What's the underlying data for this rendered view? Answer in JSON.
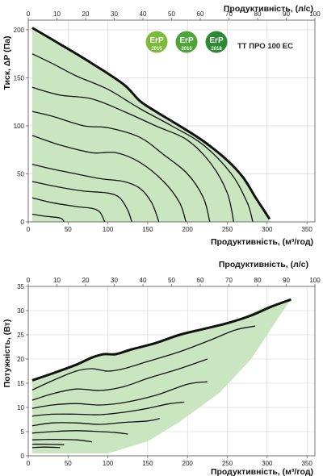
{
  "model": "ТТ ПРО 100 ЕС",
  "badges": [
    {
      "label": "ErP",
      "year": "2015",
      "color": "#7cbb3a"
    },
    {
      "label": "ErP",
      "year": "2016",
      "color": "#4ea63a"
    },
    {
      "label": "ErP",
      "year": "2018",
      "color": "#2e8a33"
    }
  ],
  "colors": {
    "fill": "#c9e6c0",
    "curve": "#111111",
    "grid": "#d0d0d0"
  },
  "chart_data": [
    {
      "type": "area",
      "title": "",
      "xlabel": "Продуктивність, (м³/год)",
      "x2label": "Продуктивність, (л/с)",
      "ylabel": "Тиск, ΔP (Па)",
      "xlim": [
        0,
        360
      ],
      "x2lim": [
        0,
        100
      ],
      "ylim": [
        0,
        210
      ],
      "xticks": [
        0,
        50,
        100,
        150,
        200,
        250,
        300,
        350
      ],
      "x2ticks": [
        0,
        10,
        20,
        30,
        40,
        50,
        60,
        70,
        80,
        90,
        100
      ],
      "yticks": [
        0,
        50,
        100,
        150,
        200
      ],
      "region": [
        [
          5,
          202
        ],
        [
          40,
          185
        ],
        [
          80,
          165
        ],
        [
          120,
          143
        ],
        [
          140,
          126
        ],
        [
          160,
          115
        ],
        [
          190,
          100
        ],
        [
          220,
          84
        ],
        [
          250,
          64
        ],
        [
          270,
          46
        ],
        [
          285,
          26
        ],
        [
          296,
          12
        ],
        [
          303,
          3
        ]
      ],
      "max_curve": [
        [
          5,
          202
        ],
        [
          40,
          185
        ],
        [
          80,
          165
        ],
        [
          120,
          143
        ],
        [
          140,
          126
        ],
        [
          160,
          115
        ],
        [
          190,
          100
        ],
        [
          220,
          84
        ],
        [
          250,
          64
        ],
        [
          270,
          46
        ],
        [
          285,
          26
        ],
        [
          296,
          12
        ],
        [
          303,
          3
        ]
      ],
      "series": [
        {
          "points": [
            [
              5,
              175
            ],
            [
              30,
              165
            ],
            [
              60,
              152
            ],
            [
              100,
              138
            ],
            [
              140,
              118
            ],
            [
              180,
              100
            ],
            [
              220,
              80
            ],
            [
              255,
              50
            ],
            [
              275,
              20
            ],
            [
              282,
              0
            ]
          ]
        },
        {
          "points": [
            [
              5,
              140
            ],
            [
              40,
              132
            ],
            [
              80,
              128
            ],
            [
              120,
              115
            ],
            [
              160,
              100
            ],
            [
              200,
              85
            ],
            [
              230,
              60
            ],
            [
              250,
              30
            ],
            [
              258,
              0
            ]
          ]
        },
        {
          "points": [
            [
              5,
              115
            ],
            [
              30,
              110
            ],
            [
              70,
              100
            ],
            [
              100,
              98
            ],
            [
              140,
              88
            ],
            [
              170,
              70
            ],
            [
              200,
              50
            ],
            [
              220,
              25
            ],
            [
              228,
              0
            ]
          ]
        },
        {
          "points": [
            [
              5,
              90
            ],
            [
              40,
              80
            ],
            [
              80,
              72
            ],
            [
              110,
              72
            ],
            [
              140,
              62
            ],
            [
              170,
              42
            ],
            [
              190,
              20
            ],
            [
              198,
              0
            ]
          ]
        },
        {
          "points": [
            [
              5,
              60
            ],
            [
              30,
              55
            ],
            [
              60,
              50
            ],
            [
              90,
              45
            ],
            [
              120,
              42
            ],
            [
              140,
              35
            ],
            [
              155,
              20
            ],
            [
              164,
              0
            ]
          ]
        },
        {
          "points": [
            [
              5,
              42
            ],
            [
              40,
              36
            ],
            [
              70,
              32
            ],
            [
              100,
              30
            ],
            [
              115,
              25
            ],
            [
              125,
              12
            ],
            [
              130,
              0
            ]
          ]
        },
        {
          "points": [
            [
              5,
              25
            ],
            [
              30,
              20
            ],
            [
              60,
              16
            ],
            [
              80,
              14
            ],
            [
              90,
              10
            ],
            [
              96,
              0
            ]
          ]
        },
        {
          "points": [
            [
              5,
              8
            ],
            [
              20,
              6
            ],
            [
              40,
              4
            ],
            [
              45,
              0
            ]
          ]
        }
      ]
    },
    {
      "type": "area",
      "title": "",
      "xlabel": "Продуктивність, (м³/год)",
      "x2label": "Продуктивність, (л/с)",
      "ylabel": "Потужність, (Вт)",
      "xlim": [
        0,
        360
      ],
      "x2lim": [
        0,
        100
      ],
      "ylim": [
        0,
        35
      ],
      "xticks": [
        0,
        50,
        100,
        150,
        200,
        250,
        300,
        350
      ],
      "x2ticks": [
        0,
        10,
        20,
        30,
        40,
        50,
        60,
        70,
        80,
        90,
        100
      ],
      "yticks": [
        0,
        5,
        10,
        15,
        20,
        25,
        30,
        35
      ],
      "region": [
        [
          5,
          15.6
        ],
        [
          40,
          17.5
        ],
        [
          80,
          20
        ],
        [
          100,
          21
        ],
        [
          130,
          22
        ],
        [
          180,
          24.5
        ],
        [
          230,
          26.5
        ],
        [
          260,
          28
        ],
        [
          300,
          31
        ],
        [
          330,
          32.3
        ],
        [
          320,
          30
        ],
        [
          300,
          25
        ],
        [
          280,
          20
        ],
        [
          240,
          13
        ],
        [
          190,
          7
        ],
        [
          150,
          3
        ],
        [
          100,
          0.5
        ],
        [
          5,
          0.5
        ]
      ],
      "max_curve": [
        [
          5,
          15.6
        ],
        [
          30,
          17
        ],
        [
          60,
          18.8
        ],
        [
          80,
          20.3
        ],
        [
          95,
          21
        ],
        [
          110,
          21
        ],
        [
          130,
          22
        ],
        [
          160,
          23.3
        ],
        [
          190,
          25
        ],
        [
          220,
          26.2
        ],
        [
          250,
          27.4
        ],
        [
          280,
          29
        ],
        [
          305,
          30.8
        ],
        [
          330,
          32.3
        ]
      ],
      "series": [
        {
          "points": [
            [
              5,
              13.6
            ],
            [
              30,
              15.5
            ],
            [
              60,
              17.5
            ],
            [
              80,
              18
            ],
            [
              100,
              17.5
            ],
            [
              120,
              18
            ],
            [
              150,
              19.5
            ],
            [
              190,
              21.5
            ],
            [
              230,
              24
            ],
            [
              260,
              26
            ],
            [
              285,
              26.8
            ]
          ]
        },
        {
          "points": [
            [
              5,
              11.5
            ],
            [
              30,
              12.8
            ],
            [
              60,
              13.8
            ],
            [
              90,
              13.5
            ],
            [
              120,
              14.3
            ],
            [
              150,
              16
            ],
            [
              190,
              18
            ],
            [
              225,
              20
            ]
          ]
        },
        {
          "points": [
            [
              5,
              9.8
            ],
            [
              30,
              10.5
            ],
            [
              60,
              10.8
            ],
            [
              90,
              10.5
            ],
            [
              120,
              11
            ],
            [
              160,
              12.5
            ],
            [
              200,
              14.8
            ],
            [
              225,
              15.3
            ]
          ]
        },
        {
          "points": [
            [
              5,
              8.2
            ],
            [
              30,
              8.6
            ],
            [
              60,
              8.6
            ],
            [
              90,
              8.5
            ],
            [
              120,
              9
            ],
            [
              150,
              9.8
            ],
            [
              175,
              10.7
            ],
            [
              196,
              11.1
            ]
          ]
        },
        {
          "points": [
            [
              5,
              6.2
            ],
            [
              30,
              6.8
            ],
            [
              60,
              6.8
            ],
            [
              90,
              6.5
            ],
            [
              120,
              6.9
            ],
            [
              150,
              7.2
            ],
            [
              165,
              7.7
            ]
          ]
        },
        {
          "points": [
            [
              5,
              4.7
            ],
            [
              30,
              5
            ],
            [
              60,
              5.2
            ],
            [
              90,
              5
            ],
            [
              110,
              4.8
            ],
            [
              125,
              4.5
            ]
          ]
        },
        {
          "points": [
            [
              5,
              3.3
            ],
            [
              30,
              3.4
            ],
            [
              60,
              3.3
            ],
            [
              80,
              2.9
            ]
          ]
        },
        {
          "points": [
            [
              5,
              2.4
            ],
            [
              25,
              2.4
            ],
            [
              45,
              2.3
            ]
          ]
        },
        {
          "points": [
            [
              5,
              1.7
            ],
            [
              20,
              1.8
            ],
            [
              40,
              1.7
            ]
          ]
        }
      ]
    }
  ]
}
